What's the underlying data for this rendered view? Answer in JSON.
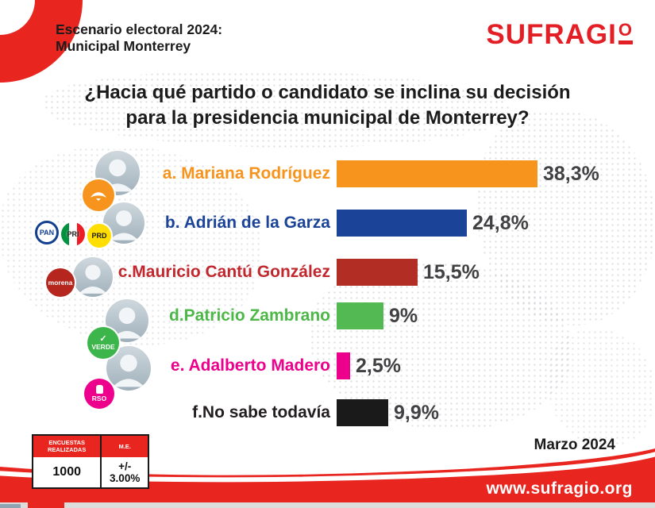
{
  "header": {
    "tagline_line1": "Escenario electoral 2024:",
    "tagline_line2": "Municipal Monterrey",
    "logo": {
      "text_main": "SUFRAGI",
      "text_o": "O",
      "color": "#E31E25"
    }
  },
  "question": {
    "line1": "¿Hacia qué partido o candidato se inclina su decisión",
    "line2": "para la presidencia municipal de Monterrey?"
  },
  "chart_data": {
    "type": "bar",
    "orientation": "horizontal",
    "title": "¿Hacia qué partido o candidato se inclina su decisión para la presidencia municipal de Monterrey?",
    "categories": [
      "a. Mariana Rodríguez",
      "b. Adrián de la Garza",
      "c.Mauricio Cantú González",
      "d.Patricio Zambrano",
      "e. Adalberto Madero",
      "f.No sabe todavía"
    ],
    "values": [
      38.3,
      24.8,
      15.5,
      9,
      2.5,
      9.9
    ],
    "value_labels": [
      "38,3%",
      "24,8%",
      "15,5%",
      "9%",
      "2,5%",
      "9,9%"
    ],
    "bar_colors": [
      "#F7941D",
      "#1B4398",
      "#B22E24",
      "#52B953",
      "#EC008C",
      "#1A1A1A"
    ],
    "xlim": [
      0,
      40
    ],
    "grid": false,
    "legend": "none"
  },
  "rows": [
    {
      "label": "a. Mariana Rodríguez",
      "value": 38.3,
      "value_label": "38,3%",
      "bar_color": "#F7941D",
      "label_color": "#F7941D",
      "parties": [
        {
          "name": "Movimiento Ciudadano"
        }
      ]
    },
    {
      "label": "b. Adrián de la Garza",
      "value": 24.8,
      "value_label": "24,8%",
      "bar_color": "#1B4398",
      "label_color": "#1B4398",
      "parties": [
        {
          "name": "PAN"
        },
        {
          "name": "PRI"
        },
        {
          "name": "PRD"
        }
      ]
    },
    {
      "label": "c.Mauricio Cantú González",
      "value": 15.5,
      "value_label": "15,5%",
      "bar_color": "#B22E24",
      "label_color": "#C1272D",
      "parties": [
        {
          "name": "morena"
        }
      ]
    },
    {
      "label": "d.Patricio Zambrano",
      "value": 9,
      "value_label": "9%",
      "bar_color": "#52B953",
      "label_color": "#4DB848",
      "parties": [
        {
          "name": "VERDE"
        }
      ]
    },
    {
      "label": "e. Adalberto Madero",
      "value": 2.5,
      "value_label": "2,5%",
      "bar_color": "#EC008C",
      "label_color": "#EC008C",
      "parties": [
        {
          "name": "RSO"
        }
      ]
    },
    {
      "label": "f.No sabe todavía",
      "value": 9.9,
      "value_label": "9,9%",
      "bar_color": "#1A1A1A",
      "label_color": "#231F20",
      "parties": []
    }
  ],
  "summary_table": {
    "col1_header_line1": "ENCUESTAS",
    "col1_header_line2": "REALIZADAS",
    "col2_header": "M.E.",
    "col1_value": "1000",
    "col2_value": "+/- 3.00%"
  },
  "date_label": "Marzo 2024",
  "footer_url": "www.sufragio.org",
  "brand_colors": {
    "red": "#E8251F",
    "text_dark": "#414042"
  }
}
